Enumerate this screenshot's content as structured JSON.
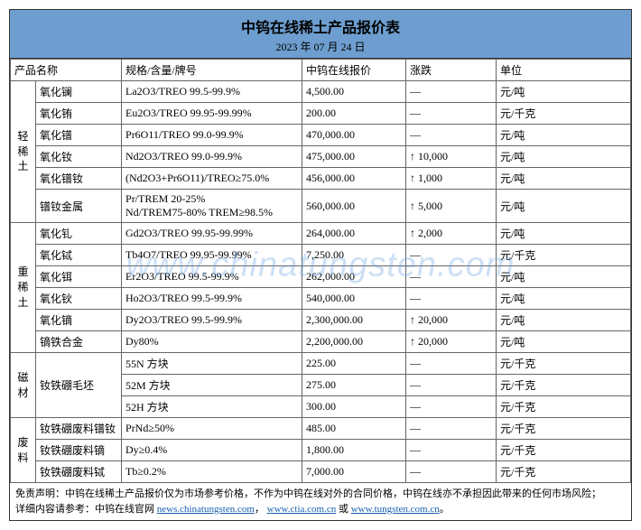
{
  "header": {
    "title": "中钨在线稀土产品报价表",
    "date": "2023 年 07 月 24 日"
  },
  "columns": {
    "name": "产品名称",
    "spec": "规格/含量/牌号",
    "price": "中钨在线报价",
    "change": "涨跌",
    "unit": "单位"
  },
  "groups": [
    {
      "label": "轻稀土",
      "rows": [
        {
          "name": "氧化镧",
          "spec": "La2O3/TREO 99.5-99.9%",
          "price": "4,500.00",
          "change": "—",
          "unit": "元/吨"
        },
        {
          "name": "氧化铕",
          "spec": "Eu2O3/TREO 99.95-99.99%",
          "price": "200.00",
          "change": "—",
          "unit": "元/千克"
        },
        {
          "name": "氧化镨",
          "spec": "Pr6O11/TREO 99.0-99.9%",
          "price": "470,000.00",
          "change": "—",
          "unit": "元/吨"
        },
        {
          "name": "氧化钕",
          "spec": "Nd2O3/TREO 99.0-99.9%",
          "price": "475,000.00",
          "change": "↑ 10,000",
          "unit": "元/吨"
        },
        {
          "name": "氧化镨钕",
          "spec": "(Nd2O3+Pr6O11)/TREO≥75.0%",
          "price": "456,000.00",
          "change": "↑ 1,000",
          "unit": "元/吨"
        },
        {
          "name": "镨钕金属",
          "spec": "Pr/TREM 20-25%\nNd/TREM75-80% TREM≥98.5%",
          "price": "560,000.00",
          "change": "↑ 5,000",
          "unit": "元/吨"
        }
      ]
    },
    {
      "label": "重稀土",
      "rows": [
        {
          "name": "氧化钆",
          "spec": "Gd2O3/TREO 99.95-99.99%",
          "price": "264,000.00",
          "change": "↑ 2,000",
          "unit": "元/吨"
        },
        {
          "name": "氧化铽",
          "spec": "Tb4O7/TREO 99.95-99.99%",
          "price": "7,250.00",
          "change": "—",
          "unit": "元/千克"
        },
        {
          "name": "氧化铒",
          "spec": "Er2O3/TREO 99.5-99.9%",
          "price": "262,000.00",
          "change": "—",
          "unit": "元/吨"
        },
        {
          "name": "氧化钬",
          "spec": "Ho2O3/TREO 99.5-99.9%",
          "price": "540,000.00",
          "change": "—",
          "unit": "元/吨"
        },
        {
          "name": "氧化镝",
          "spec": "Dy2O3/TREO 99.5-99.9%",
          "price": "2,300,000.00",
          "change": "↑ 20,000",
          "unit": "元/吨"
        },
        {
          "name": "镝铁合金",
          "spec": "Dy80%",
          "price": "2,200,000.00",
          "change": "↑ 20,000",
          "unit": "元/吨"
        }
      ]
    },
    {
      "label": "磁材",
      "rows": [
        {
          "name": "钕铁硼毛坯",
          "spec": "55N 方块",
          "price": "225.00",
          "change": "—",
          "unit": "元/千克",
          "name_rowspan": 3
        },
        {
          "name": "",
          "spec": "52M 方块",
          "price": "275.00",
          "change": "—",
          "unit": "元/千克"
        },
        {
          "name": "",
          "spec": "52H 方块",
          "price": "300.00",
          "change": "—",
          "unit": "元/千克"
        }
      ]
    },
    {
      "label": "废料",
      "rows": [
        {
          "name": "钕铁硼废料镨钕",
          "spec": "PrNd≥50%",
          "price": "485.00",
          "change": "—",
          "unit": "元/千克"
        },
        {
          "name": "钕铁硼废料镝",
          "spec": "Dy≥0.4%",
          "price": "1,800.00",
          "change": "—",
          "unit": "元/千克"
        },
        {
          "name": "钕铁硼废料铽",
          "spec": "Tb≥0.2%",
          "price": "7,000.00",
          "change": "—",
          "unit": "元/千克"
        }
      ]
    }
  ],
  "disclaimer": {
    "line1_a": "免责声明：中钨在线稀土产品报价仅为市场参考价格，不作为中钨在线对外的合同价格，中钨在线亦不承担因此带来的任何市场风险；",
    "line2_a": "详细内容请参考：中钨在线官网 ",
    "link1": "news.chinatungsten.com",
    "sep1": "，",
    "link2": "www.ctia.com.cn",
    "sep2": " 或 ",
    "link3": "www.tungsten.com.cn",
    "tail": "。"
  },
  "watermark": "www.chinatungsten.com",
  "styling": {
    "header_bg": "#6d9ecf",
    "border_color": "#666",
    "link_color": "#1a5fb0",
    "watermark_color": "rgba(100,160,225,0.32)",
    "title_fontsize": 16,
    "body_fontsize": 12
  }
}
